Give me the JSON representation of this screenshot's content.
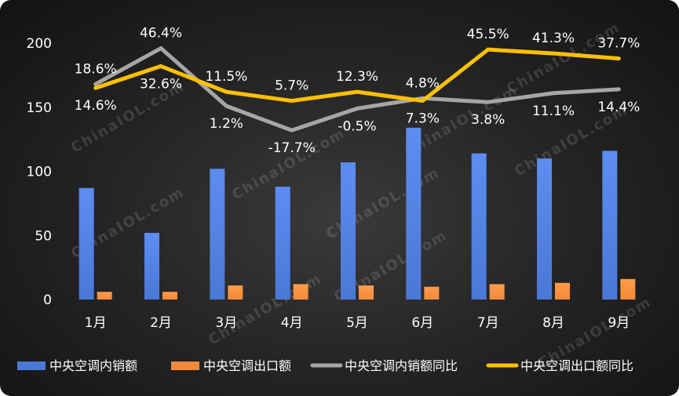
{
  "chart_data": {
    "type": "bar",
    "categories": [
      "1月",
      "2月",
      "3月",
      "4月",
      "5月",
      "6月",
      "7月",
      "8月",
      "9月"
    ],
    "ylim": [
      0,
      200
    ],
    "yticks": [
      0,
      50,
      100,
      150,
      200
    ],
    "grid": false,
    "legend_position": "bottom",
    "series": [
      {
        "name": "中央空调内销额",
        "kind": "bar",
        "color": "#4a78d6",
        "values": [
          87,
          52,
          102,
          88,
          107,
          134,
          114,
          110,
          116
        ]
      },
      {
        "name": "中央空调出口额",
        "kind": "bar",
        "color": "#f08a3c",
        "values": [
          6,
          6,
          11,
          12,
          11,
          10,
          12,
          13,
          16
        ]
      },
      {
        "name": "中央空调内销额同比",
        "kind": "line",
        "color": "#a6a6a6",
        "values": [
          168,
          196,
          151,
          132,
          149,
          157,
          154,
          161,
          164
        ],
        "labels": [
          "18.6%",
          "46.4%",
          "1.2%",
          "-17.7%",
          "-0.5%",
          "4.8%",
          "3.8%",
          "11.1%",
          "14.4%"
        ]
      },
      {
        "name": "中央空调出口额同比",
        "kind": "line",
        "color": "#ffc000",
        "values": [
          165,
          182,
          162,
          155,
          162,
          155,
          195,
          192,
          188
        ],
        "labels": [
          "14.6%",
          "32.6%",
          "11.5%",
          "5.7%",
          "12.3%",
          "7.3%",
          "45.5%",
          "41.3%",
          "37.7%"
        ]
      }
    ],
    "watermark": "ChinaIOL.com"
  }
}
